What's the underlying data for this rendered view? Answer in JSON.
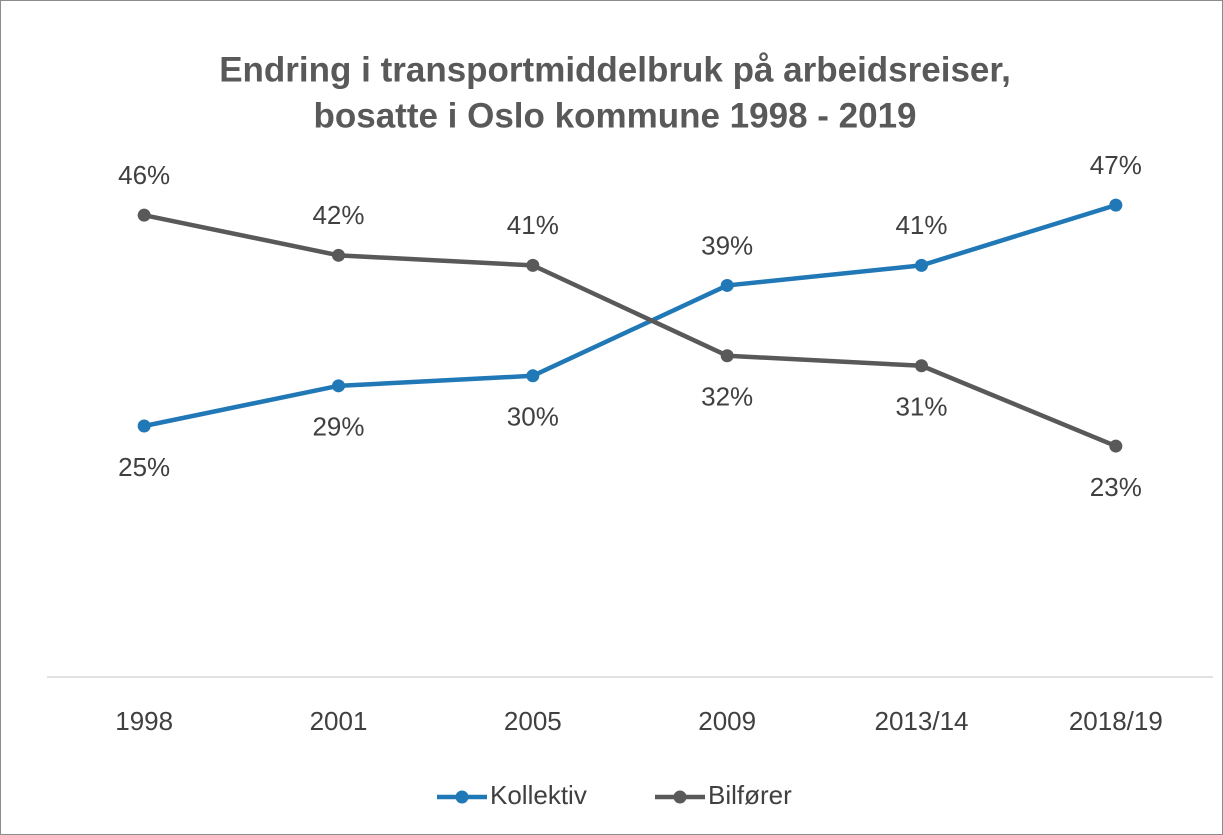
{
  "chart_data": {
    "type": "line",
    "title": [
      "Endring i transportmiddelbruk på arbeidsreiser,",
      "bosatte i Oslo kommune 1998 - 2019"
    ],
    "categories": [
      "1998",
      "2001",
      "2005",
      "2009",
      "2013/14",
      "2018/19"
    ],
    "series": [
      {
        "name": "Kollektiv",
        "color": "#2178b6",
        "values": [
          25,
          29,
          30,
          39,
          41,
          47
        ],
        "value_labels": [
          "25%",
          "29%",
          "30%",
          "39%",
          "41%",
          "47%"
        ]
      },
      {
        "name": "Bilfører",
        "color": "#595959",
        "values": [
          46,
          42,
          41,
          32,
          31,
          23
        ],
        "value_labels": [
          "46%",
          "42%",
          "41%",
          "32%",
          "31%",
          "23%"
        ]
      }
    ],
    "ylim": [
      0,
      50
    ],
    "legend": "bottom"
  }
}
